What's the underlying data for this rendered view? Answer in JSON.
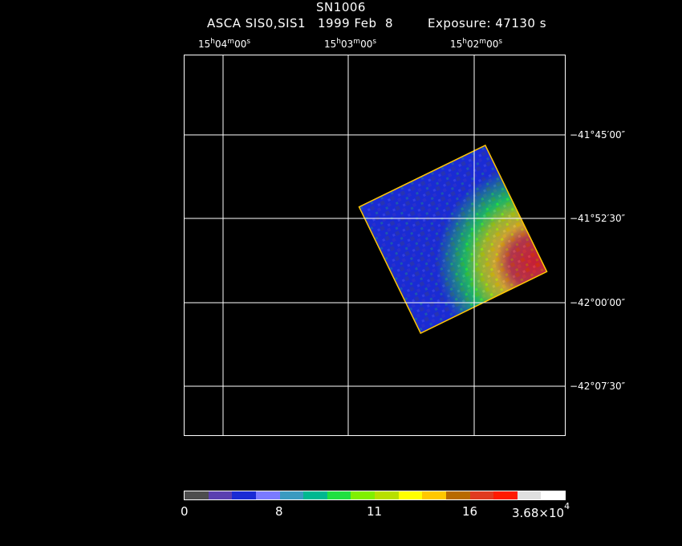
{
  "header": {
    "object": "SN1006",
    "instrument": "ASCA SIS0,SIS1",
    "date": "1999 Feb  8",
    "exposure": "Exposure: 47130 s"
  },
  "ra_labels": [
    {
      "h": "15",
      "m": "04",
      "s": "00"
    },
    {
      "h": "15",
      "m": "03",
      "s": "00"
    },
    {
      "h": "15",
      "m": "02",
      "s": "00"
    }
  ],
  "dec_labels": [
    "−41°45′00″",
    "−41°52′30″",
    "−42°00′00″",
    "−42°07′30″"
  ],
  "colorbar": {
    "colors": [
      "#4d4d4d",
      "#5a3fb0",
      "#1a2bd4",
      "#7a7aff",
      "#3a9ac0",
      "#00b890",
      "#20e040",
      "#80f000",
      "#b8e000",
      "#ffff00",
      "#ffc800",
      "#b86a00",
      "#e03a20",
      "#ff1a00",
      "#e0e0e0",
      "#ffffff"
    ],
    "tick_labels": [
      "0",
      "8",
      "11",
      "16"
    ],
    "max_label_base": "3.68×10",
    "max_label_exp": "4"
  }
}
